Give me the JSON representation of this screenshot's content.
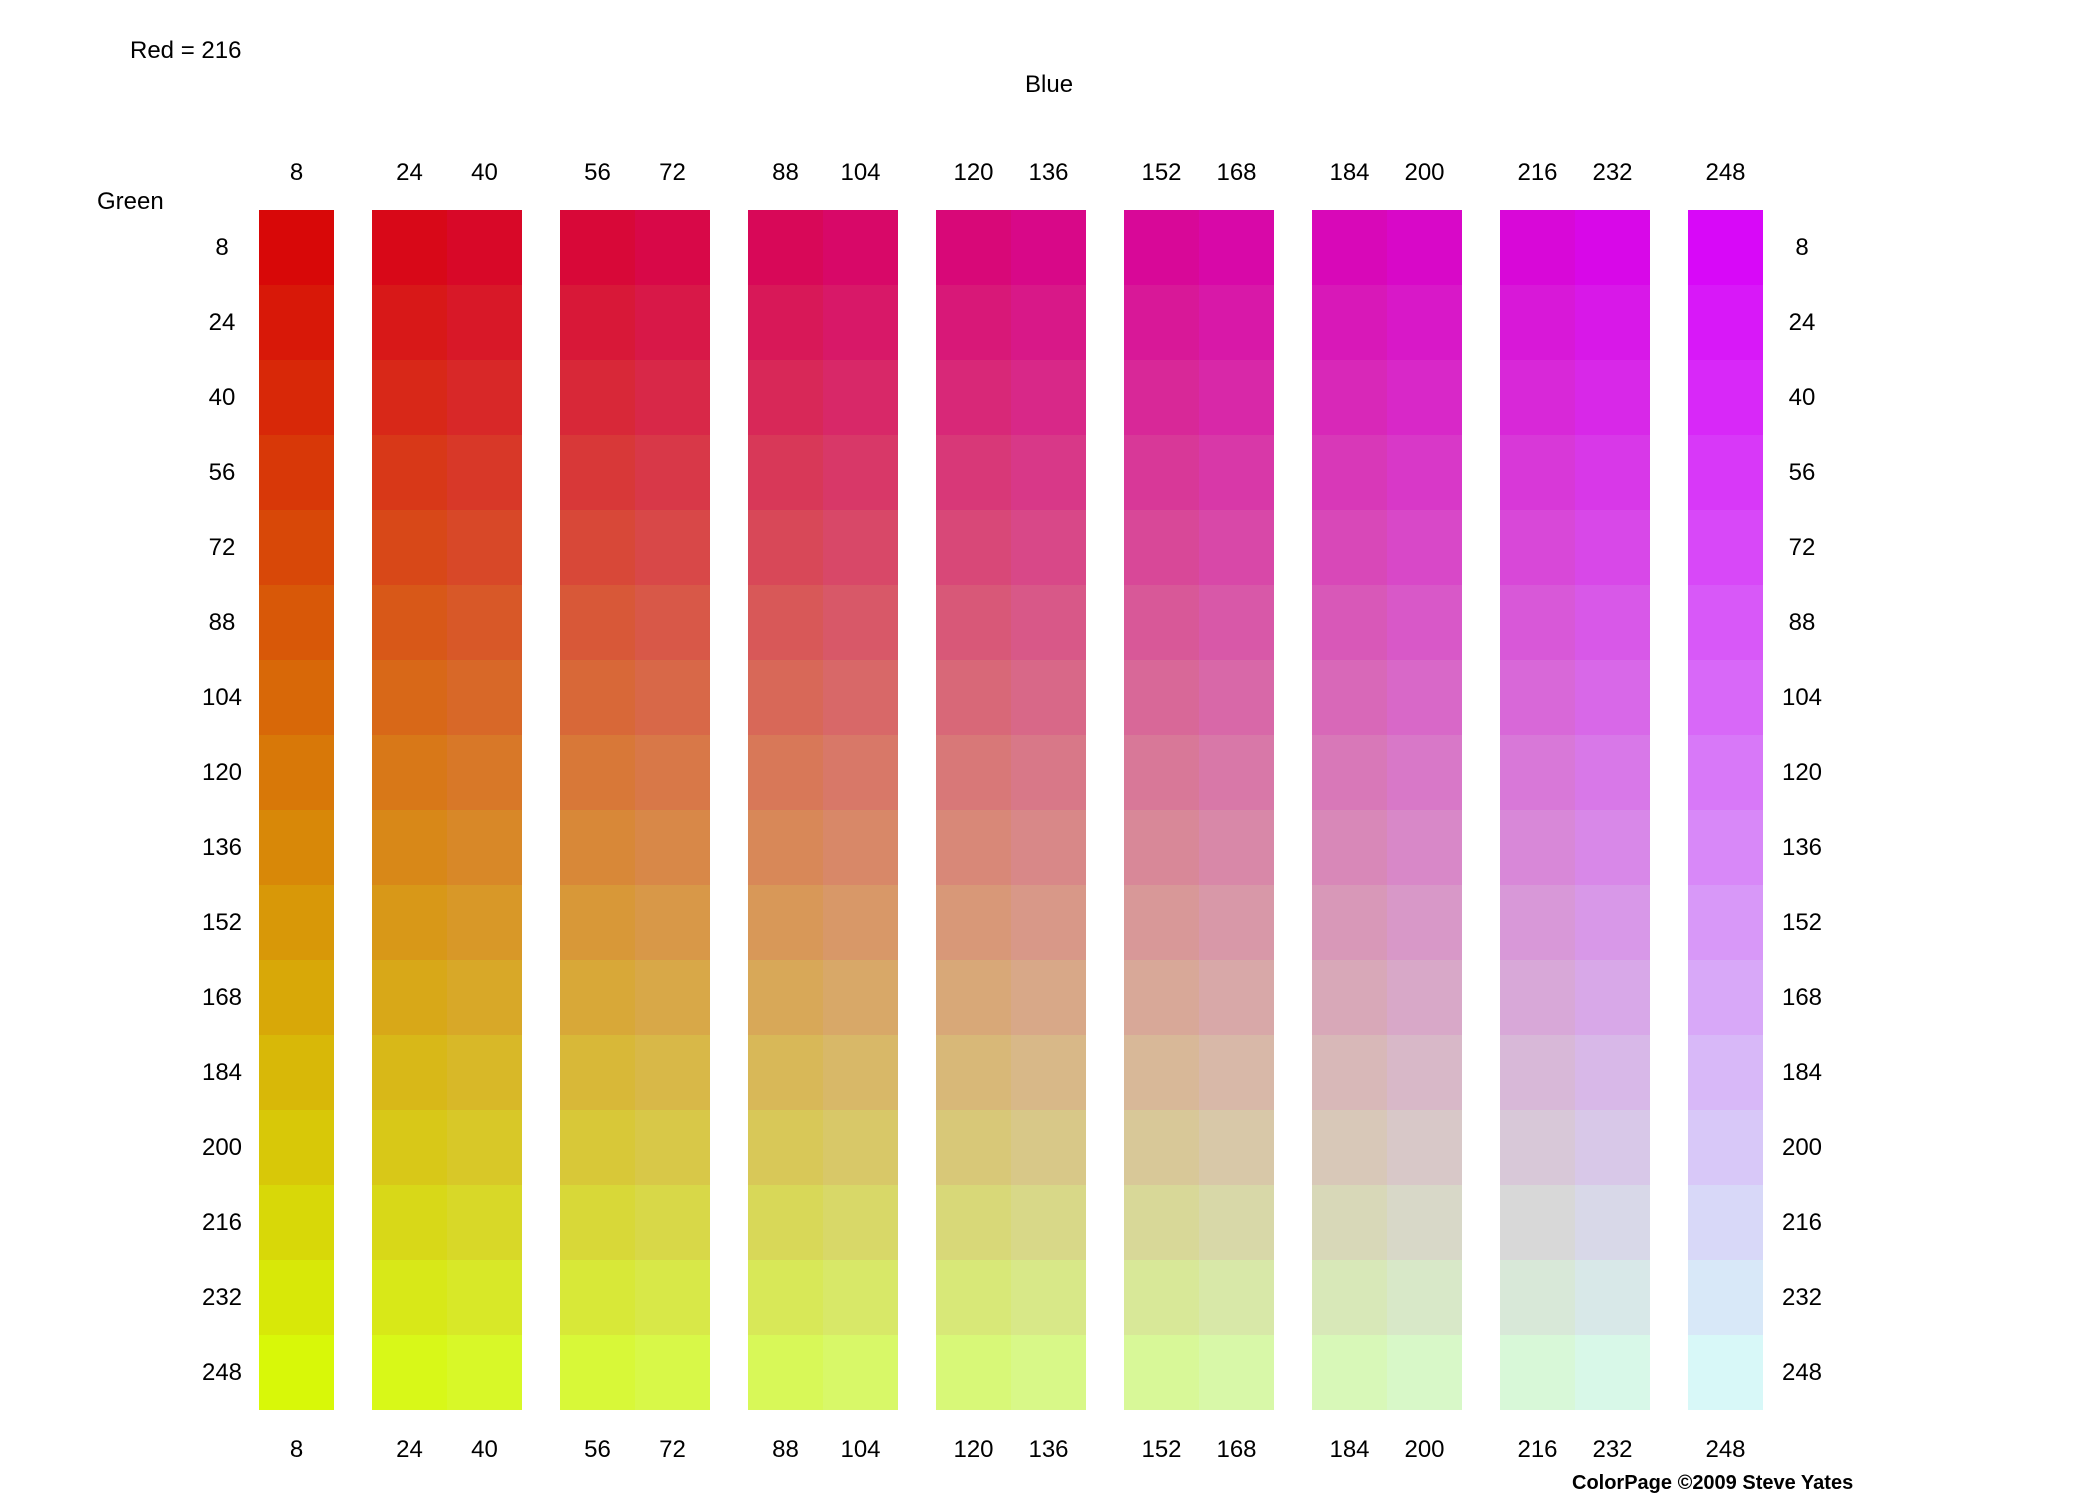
{
  "page": {
    "background": "#ffffff",
    "text_color": "#000000"
  },
  "header": {
    "red_label": "Red = 216"
  },
  "axes": {
    "blue_label": "Blue",
    "green_label": "Green"
  },
  "footer": {
    "copyright": "ColorPage ©2009 Steve Yates"
  },
  "chart_data": {
    "type": "heatmap",
    "title": "Red = 216",
    "xlabel": "Blue",
    "ylabel": "Green",
    "red": 216,
    "blue_values": [
      8,
      24,
      40,
      56,
      72,
      88,
      104,
      120,
      136,
      152,
      168,
      184,
      200,
      216,
      232,
      248
    ],
    "green_values": [
      8,
      24,
      40,
      56,
      72,
      88,
      104,
      120,
      136,
      152,
      168,
      184,
      200,
      216,
      232,
      248
    ],
    "cell_color_rule": "rgb(red, green, blue)",
    "column_groups": [
      [
        8
      ],
      [
        24,
        40
      ],
      [
        56,
        72
      ],
      [
        88,
        104
      ],
      [
        120,
        136
      ],
      [
        152,
        168
      ],
      [
        184,
        200
      ],
      [
        216,
        232
      ],
      [
        248
      ]
    ],
    "legend": "none",
    "grid_lines": "off"
  }
}
